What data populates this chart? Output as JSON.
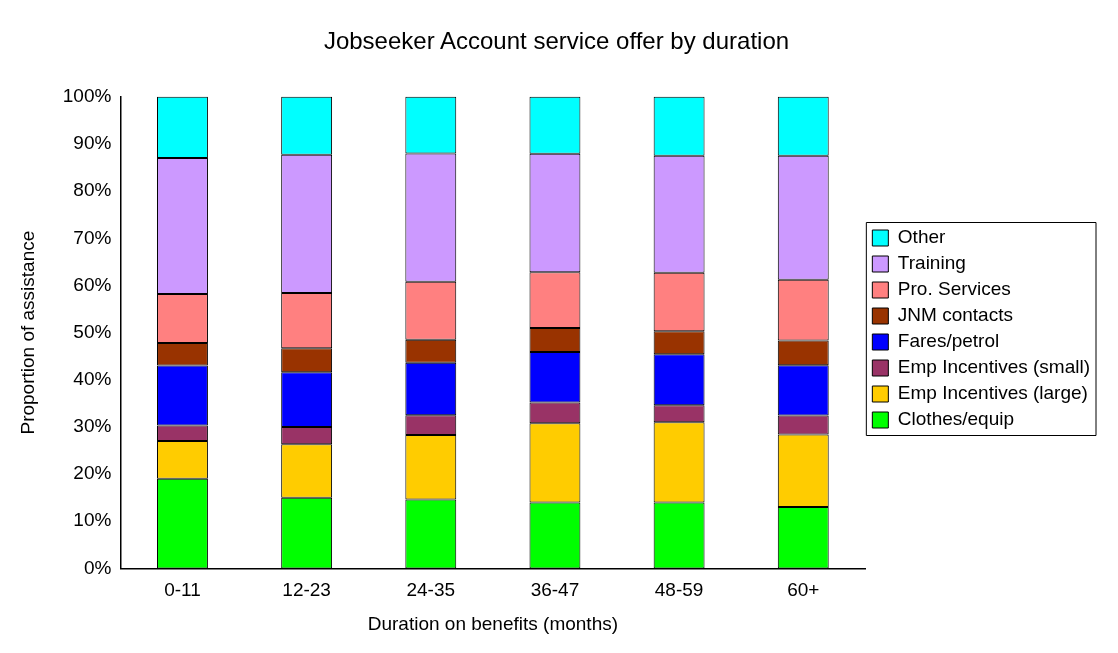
{
  "chart_data": {
    "type": "bar",
    "title": "Jobseeker Account service offer by duration",
    "xlabel": "Duration on benefits (months)",
    "ylabel": "Proportion of assistance",
    "categories": [
      "0-11",
      "12-23",
      "24-35",
      "36-47",
      "48-59",
      "60+"
    ],
    "stacked": true,
    "ylim": [
      0,
      100
    ],
    "yticks": [
      {
        "value": 0,
        "label": "0%"
      },
      {
        "value": 10,
        "label": "10%"
      },
      {
        "value": 20,
        "label": "20%"
      },
      {
        "value": 30,
        "label": "30%"
      },
      {
        "value": 40,
        "label": "40%"
      },
      {
        "value": 50,
        "label": "50%"
      },
      {
        "value": 60,
        "label": "60%"
      },
      {
        "value": 70,
        "label": "70%"
      },
      {
        "value": 80,
        "label": "80%"
      },
      {
        "value": 90,
        "label": "90%"
      },
      {
        "value": 100,
        "label": "100%"
      }
    ],
    "grid": false,
    "legend": "right",
    "series": [
      {
        "name": "Clothes/equip",
        "color": "#00ff00",
        "values": [
          19,
          15,
          14.6,
          14,
          14,
          13
        ]
      },
      {
        "name": "Emp Incentives (large)",
        "color": "#ffcc00",
        "values": [
          8,
          11.3,
          13.7,
          16.8,
          17,
          15.4
        ]
      },
      {
        "name": "Emp Incentives (small)",
        "color": "#993366",
        "values": [
          3.3,
          3.7,
          4.2,
          4.4,
          3.6,
          4
        ]
      },
      {
        "name": "Fares/petrol",
        "color": "#0000ff",
        "values": [
          12.7,
          11.6,
          11.1,
          10.7,
          10.8,
          10.7
        ]
      },
      {
        "name": "JNM contacts",
        "color": "#993300",
        "values": [
          4.8,
          5.1,
          4.9,
          5.1,
          4.9,
          5.2
        ]
      },
      {
        "name": "Pro. Services",
        "color": "#ff8080",
        "values": [
          10.4,
          11.7,
          12.3,
          11.8,
          12.4,
          12.9
        ]
      },
      {
        "name": "Training",
        "color": "#cc99ff",
        "values": [
          28.8,
          29.3,
          27.2,
          25.1,
          24.8,
          26.3
        ]
      },
      {
        "name": "Other",
        "color": "#00ffff",
        "values": [
          13,
          12.3,
          12,
          12.1,
          12.5,
          12.5
        ]
      }
    ]
  }
}
